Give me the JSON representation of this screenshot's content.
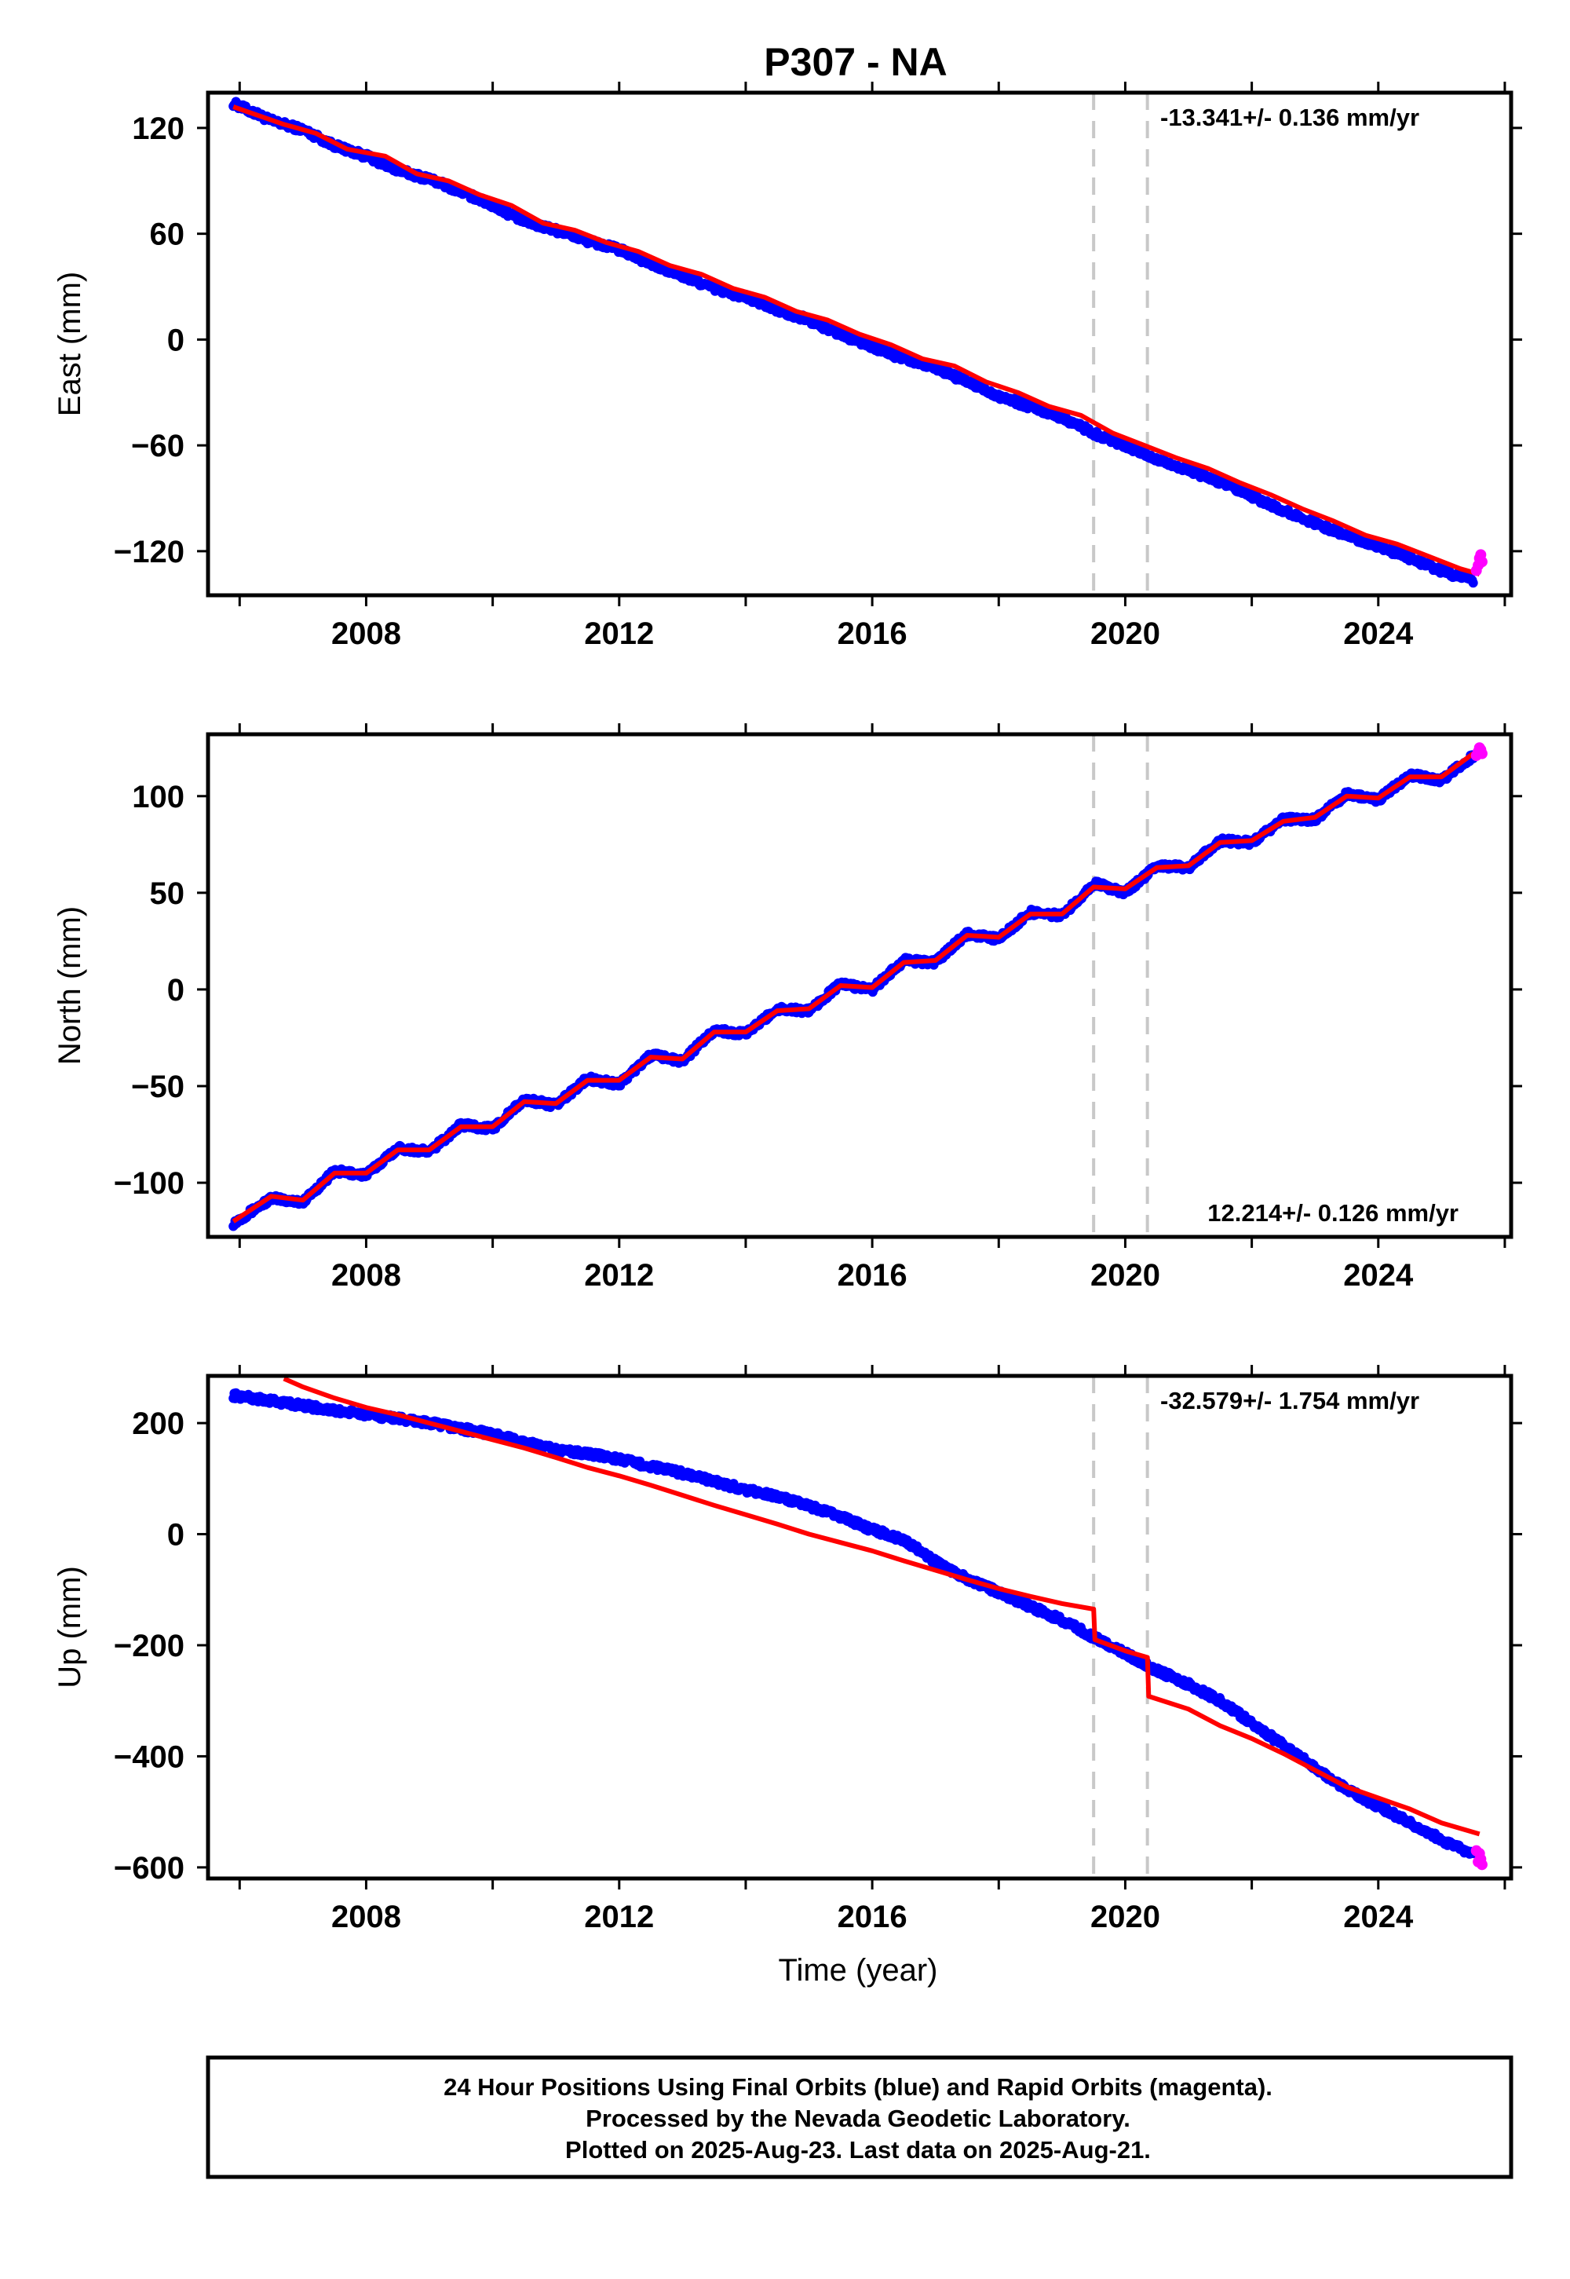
{
  "title": "P307 - NA",
  "xlabel": "Time (year)",
  "xticks": [
    "2008",
    "2012",
    "2016",
    "2020",
    "2024"
  ],
  "footer": {
    "line1": "24 Hour Positions Using Final Orbits (blue) and Rapid Orbits (magenta).",
    "line2": "Processed by the Nevada Geodetic Laboratory.",
    "line3": "Plotted on 2025-Aug-23. Last data on 2025-Aug-21."
  },
  "colors": {
    "final_orbits": "#0000ff",
    "rapid_orbits": "#ff00ff",
    "model_fit": "#ff0000",
    "event_line": "#c8c8c8"
  },
  "chart_data": [
    {
      "type": "scatter",
      "name": "east",
      "ylabel": "East (mm)",
      "rate_label": "-13.341+/- 0.136 mm/yr",
      "xlim": [
        2005.5,
        2026.1
      ],
      "ylim": [
        -145,
        140
      ],
      "yticks": [
        120,
        60,
        0,
        -60,
        -120
      ],
      "ytick_labels": [
        "120",
        "60",
        "0",
        "−60",
        "−120"
      ],
      "events": [
        2019.5,
        2020.35
      ],
      "data_x": [
        2005.9,
        2006.5,
        2007.0,
        2007.5,
        2008.0,
        2008.5,
        2009.0,
        2009.5,
        2010.0,
        2010.5,
        2011.0,
        2011.5,
        2012.0,
        2012.5,
        2013.0,
        2013.5,
        2014.0,
        2014.5,
        2015.0,
        2015.5,
        2016.0,
        2016.5,
        2017.0,
        2017.5,
        2018.0,
        2018.5,
        2019.0,
        2019.5,
        2020.0,
        2020.5,
        2021.0,
        2021.5,
        2022.0,
        2022.5,
        2023.0,
        2023.5,
        2024.0,
        2024.5,
        2025.0,
        2025.5
      ],
      "data_y": [
        134,
        124,
        119,
        110,
        104,
        96,
        91,
        84,
        76,
        67,
        62,
        56,
        51,
        43,
        36,
        29,
        24,
        17,
        11,
        3,
        -4,
        -11,
        -16,
        -24,
        -32,
        -38,
        -44,
        -53,
        -60,
        -68,
        -74,
        -81,
        -89,
        -97,
        -104,
        -111,
        -117,
        -124,
        -131,
        -137
      ],
      "model_x": [
        2005.9,
        2006.7,
        2007.2,
        2007.7,
        2008.3,
        2008.8,
        2009.3,
        2009.8,
        2010.3,
        2010.8,
        2011.3,
        2011.8,
        2012.3,
        2012.8,
        2013.3,
        2013.8,
        2014.3,
        2014.8,
        2015.3,
        2015.8,
        2016.3,
        2016.8,
        2017.3,
        2017.8,
        2018.3,
        2018.8,
        2019.3,
        2019.8,
        2020.3,
        2020.8,
        2021.3,
        2021.8,
        2022.3,
        2022.8,
        2023.3,
        2023.8,
        2024.3,
        2024.8,
        2025.3,
        2025.6
      ],
      "model_y": [
        132,
        122,
        117,
        108,
        104,
        94,
        90,
        82,
        76,
        66,
        62,
        55,
        50,
        42,
        37,
        29,
        24,
        16,
        11,
        3,
        -3,
        -11,
        -15,
        -24,
        -30,
        -38,
        -43,
        -53,
        -60,
        -67,
        -73,
        -81,
        -88,
        -96,
        -103,
        -111,
        -116,
        -123,
        -130,
        -133
      ],
      "rapid_x": [
        2025.55,
        2025.58,
        2025.6,
        2025.62,
        2025.64
      ],
      "rapid_y": [
        -131,
        -128,
        -124,
        -122,
        -126
      ]
    },
    {
      "type": "scatter",
      "name": "north",
      "ylabel": "North (mm)",
      "rate_label": "12.214+/- 0.126 mm/yr",
      "xlim": [
        2005.5,
        2026.1
      ],
      "ylim": [
        -128,
        132
      ],
      "yticks": [
        100,
        50,
        0,
        -50,
        -100
      ],
      "ytick_labels": [
        "100",
        "50",
        "0",
        "−50",
        "−100"
      ],
      "events": [
        2019.5,
        2020.35
      ],
      "data_x": [
        2005.9,
        2006.5,
        2007.0,
        2007.5,
        2008.0,
        2008.5,
        2009.0,
        2009.5,
        2010.0,
        2010.5,
        2011.0,
        2011.5,
        2012.0,
        2012.5,
        2013.0,
        2013.5,
        2014.0,
        2014.5,
        2015.0,
        2015.5,
        2016.0,
        2016.5,
        2017.0,
        2017.5,
        2018.0,
        2018.5,
        2019.0,
        2019.5,
        2020.0,
        2020.5,
        2021.0,
        2021.5,
        2022.0,
        2022.5,
        2023.0,
        2023.5,
        2024.0,
        2024.5,
        2025.0,
        2025.5
      ],
      "data_y": [
        -121,
        -108,
        -110,
        -94,
        -96,
        -82,
        -84,
        -70,
        -72,
        -57,
        -60,
        -46,
        -49,
        -34,
        -37,
        -21,
        -23,
        -10,
        -11,
        3,
        0,
        15,
        14,
        29,
        26,
        40,
        38,
        55,
        50,
        64,
        63,
        77,
        76,
        88,
        88,
        101,
        98,
        111,
        108,
        121
      ],
      "model_x": [
        2005.9,
        2006.5,
        2007.0,
        2007.5,
        2008.0,
        2008.5,
        2009.0,
        2009.5,
        2010.0,
        2010.5,
        2011.0,
        2011.5,
        2012.0,
        2012.5,
        2013.0,
        2013.5,
        2014.0,
        2014.5,
        2015.0,
        2015.5,
        2016.0,
        2016.5,
        2017.0,
        2017.5,
        2018.0,
        2018.5,
        2019.0,
        2019.5,
        2020.0,
        2020.5,
        2021.0,
        2021.5,
        2022.0,
        2022.5,
        2023.0,
        2023.5,
        2024.0,
        2024.5,
        2025.0,
        2025.5
      ],
      "model_y": [
        -120,
        -107,
        -109,
        -95,
        -95,
        -83,
        -83,
        -71,
        -71,
        -58,
        -59,
        -47,
        -47,
        -35,
        -36,
        -22,
        -22,
        -11,
        -10,
        2,
        1,
        14,
        15,
        28,
        27,
        39,
        39,
        53,
        52,
        63,
        64,
        76,
        77,
        87,
        89,
        100,
        99,
        110,
        110,
        122
      ],
      "rapid_x": [
        2025.55,
        2025.58,
        2025.6,
        2025.62,
        2025.64
      ],
      "rapid_y": [
        121,
        123,
        125,
        124,
        122
      ]
    },
    {
      "type": "scatter",
      "name": "up",
      "ylabel": "Up (mm)",
      "rate_label": "-32.579+/- 1.754 mm/yr",
      "xlim": [
        2005.5,
        2026.1
      ],
      "ylim": [
        -620,
        285
      ],
      "yticks": [
        200,
        0,
        -200,
        -400,
        -600
      ],
      "ytick_labels": [
        "200",
        "0",
        "−200",
        "−400",
        "−600"
      ],
      "events": [
        2019.5,
        2020.35
      ],
      "data_x": [
        2005.9,
        2006.5,
        2007.0,
        2007.5,
        2008.0,
        2008.5,
        2009.0,
        2009.5,
        2010.0,
        2010.5,
        2011.0,
        2011.5,
        2012.0,
        2012.5,
        2013.0,
        2013.5,
        2014.0,
        2014.5,
        2015.0,
        2015.5,
        2016.0,
        2016.5,
        2017.0,
        2017.5,
        2018.0,
        2018.5,
        2019.0,
        2019.5,
        2020.0,
        2020.5,
        2021.0,
        2021.5,
        2022.0,
        2022.5,
        2023.0,
        2023.5,
        2024.0,
        2024.5,
        2025.0,
        2025.5
      ],
      "data_y": [
        250,
        240,
        232,
        222,
        216,
        208,
        200,
        190,
        180,
        165,
        152,
        145,
        135,
        122,
        110,
        95,
        80,
        68,
        50,
        32,
        8,
        -10,
        -50,
        -80,
        -105,
        -130,
        -155,
        -185,
        -215,
        -245,
        -270,
        -300,
        -340,
        -380,
        -420,
        -460,
        -490,
        -520,
        -550,
        -578
      ],
      "model_x": [
        2006.7,
        2007.0,
        2007.5,
        2008.0,
        2008.5,
        2009.0,
        2009.5,
        2010.0,
        2010.5,
        2011.0,
        2011.5,
        2012.0,
        2012.5,
        2013.0,
        2013.5,
        2014.0,
        2014.5,
        2015.0,
        2015.5,
        2016.0,
        2016.5,
        2017.0,
        2017.5,
        2018.0,
        2018.5,
        2019.0,
        2019.5,
        2019.52,
        2020.0,
        2020.35,
        2020.37,
        2021.0,
        2021.5,
        2022.0,
        2022.5,
        2023.0,
        2023.5,
        2024.0,
        2024.5,
        2025.0,
        2025.6
      ],
      "model_y": [
        280,
        265,
        245,
        228,
        215,
        200,
        185,
        170,
        155,
        138,
        120,
        105,
        88,
        70,
        52,
        35,
        18,
        0,
        -15,
        -30,
        -48,
        -65,
        -82,
        -98,
        -112,
        -125,
        -135,
        -190,
        -210,
        -222,
        -292,
        -315,
        -345,
        -368,
        -395,
        -425,
        -455,
        -475,
        -495,
        -520,
        -540
      ],
      "rapid_x": [
        2025.55,
        2025.58,
        2025.6,
        2025.62,
        2025.64
      ],
      "rapid_y": [
        -570,
        -590,
        -575,
        -585,
        -595
      ]
    }
  ]
}
